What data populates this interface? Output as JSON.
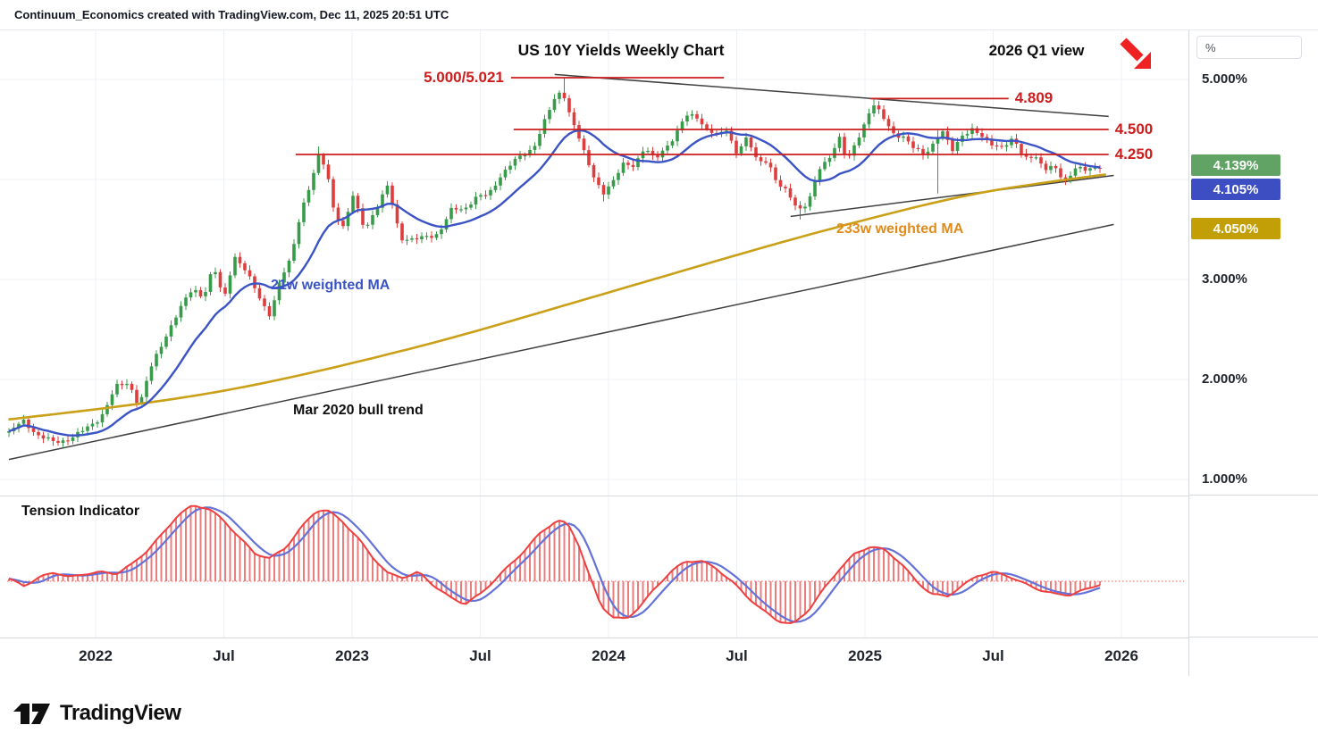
{
  "attribution": "Continuum_Economics created with TradingView.com, Dec 11, 2025 20:51 UTC",
  "titles": {
    "main": "US 10Y Yields Weekly Chart",
    "view": "2026 Q1 view"
  },
  "footer": {
    "brand": "TradingView"
  },
  "colors": {
    "candle_up": "#389b4a",
    "candle_down": "#de3d3d",
    "ma21": "#3a53c5",
    "ma233": "#c9a018",
    "level_red": "#cc1d1d",
    "trendline": "#404040",
    "tension_bar": "#ec7d7d",
    "tension_red": "#ee4040",
    "tension_blue": "#6472d8",
    "baseline_red": "#dd6666",
    "grid": "#edf0f4",
    "arrow_red": "#ee2222"
  },
  "chart_data": {
    "type": "candlestick",
    "title": "US 10Y Yields Weekly Chart",
    "instrument": "US 10Y Yields",
    "timeframe": "Weekly",
    "x_axis": {
      "labels": [
        "2022",
        "Jul",
        "2023",
        "Jul",
        "2024",
        "Jul",
        "2025",
        "Jul",
        "2026"
      ],
      "t": [
        2022,
        2022.5,
        2023,
        2023.5,
        2024,
        2024.5,
        2025,
        2025.5,
        2026
      ],
      "t_range": [
        2021.66,
        2026.26
      ]
    },
    "y_axis": {
      "unit": "%",
      "tick_labels": [
        "5.000%",
        "3.000%",
        "2.000%",
        "1.000%"
      ],
      "tick_values": [
        5.0,
        3.0,
        2.0,
        1.0
      ],
      "range": [
        0.85,
        5.45
      ],
      "grid": true
    },
    "panes": {
      "price": {
        "series_type": "candlestick",
        "weekly_close_anchors": [
          [
            2021.662,
            1.47
          ],
          [
            2021.72,
            1.58
          ],
          [
            2021.78,
            1.44
          ],
          [
            2021.84,
            1.36
          ],
          [
            2021.9,
            1.42
          ],
          [
            2021.96,
            1.49
          ],
          [
            2022.02,
            1.63
          ],
          [
            2022.08,
            1.92
          ],
          [
            2022.13,
            1.97
          ],
          [
            2022.17,
            1.74
          ],
          [
            2022.22,
            2.14
          ],
          [
            2022.28,
            2.48
          ],
          [
            2022.33,
            2.7
          ],
          [
            2022.38,
            2.92
          ],
          [
            2022.42,
            2.83
          ],
          [
            2022.46,
            3.12
          ],
          [
            2022.5,
            2.79
          ],
          [
            2022.54,
            3.25
          ],
          [
            2022.58,
            3.1
          ],
          [
            2022.63,
            2.86
          ],
          [
            2022.68,
            2.65
          ],
          [
            2022.72,
            2.98
          ],
          [
            2022.76,
            3.2
          ],
          [
            2022.8,
            3.69
          ],
          [
            2022.84,
            3.96
          ],
          [
            2022.87,
            4.22
          ],
          [
            2022.9,
            4.12
          ],
          [
            2022.93,
            3.69
          ],
          [
            2022.97,
            3.49
          ],
          [
            2023.0,
            3.85
          ],
          [
            2023.05,
            3.52
          ],
          [
            2023.1,
            3.72
          ],
          [
            2023.14,
            3.94
          ],
          [
            2023.19,
            3.42
          ],
          [
            2023.24,
            3.38
          ],
          [
            2023.29,
            3.44
          ],
          [
            2023.34,
            3.46
          ],
          [
            2023.39,
            3.7
          ],
          [
            2023.44,
            3.72
          ],
          [
            2023.48,
            3.81
          ],
          [
            2023.53,
            3.84
          ],
          [
            2023.58,
            4.05
          ],
          [
            2023.63,
            4.17
          ],
          [
            2023.67,
            4.25
          ],
          [
            2023.71,
            4.34
          ],
          [
            2023.75,
            4.57
          ],
          [
            2023.79,
            4.8
          ],
          [
            2023.82,
            4.91
          ],
          [
            2023.85,
            4.65
          ],
          [
            2023.88,
            4.44
          ],
          [
            2023.91,
            4.22
          ],
          [
            2023.94,
            4.05
          ],
          [
            2023.98,
            3.87
          ],
          [
            2024.02,
            3.97
          ],
          [
            2024.06,
            4.17
          ],
          [
            2024.1,
            4.15
          ],
          [
            2024.14,
            4.3
          ],
          [
            2024.18,
            4.2
          ],
          [
            2024.22,
            4.33
          ],
          [
            2024.26,
            4.42
          ],
          [
            2024.3,
            4.63
          ],
          [
            2024.34,
            4.66
          ],
          [
            2024.38,
            4.5
          ],
          [
            2024.42,
            4.43
          ],
          [
            2024.46,
            4.51
          ],
          [
            2024.5,
            4.27
          ],
          [
            2024.54,
            4.4
          ],
          [
            2024.58,
            4.19
          ],
          [
            2024.62,
            4.2
          ],
          [
            2024.66,
            3.93
          ],
          [
            2024.7,
            3.87
          ],
          [
            2024.74,
            3.71
          ],
          [
            2024.78,
            3.76
          ],
          [
            2024.82,
            4.09
          ],
          [
            2024.86,
            4.23
          ],
          [
            2024.9,
            4.42
          ],
          [
            2024.93,
            4.16
          ],
          [
            2024.97,
            4.4
          ],
          [
            2025.0,
            4.58
          ],
          [
            2025.03,
            4.76
          ],
          [
            2025.07,
            4.61
          ],
          [
            2025.11,
            4.47
          ],
          [
            2025.15,
            4.43
          ],
          [
            2025.19,
            4.3
          ],
          [
            2025.23,
            4.25
          ],
          [
            2025.27,
            4.38
          ],
          [
            2025.3,
            4.48
          ],
          [
            2025.34,
            4.28
          ],
          [
            2025.38,
            4.46
          ],
          [
            2025.42,
            4.5
          ],
          [
            2025.46,
            4.4
          ],
          [
            2025.5,
            4.36
          ],
          [
            2025.54,
            4.33
          ],
          [
            2025.58,
            4.39
          ],
          [
            2025.62,
            4.22
          ],
          [
            2025.66,
            4.26
          ],
          [
            2025.7,
            4.08
          ],
          [
            2025.74,
            4.13
          ],
          [
            2025.78,
            3.99
          ],
          [
            2025.82,
            4.1
          ],
          [
            2025.86,
            4.09
          ],
          [
            2025.89,
            4.13
          ],
          [
            2025.915,
            4.14
          ]
        ],
        "wick_overrides": [
          {
            "t": 2022.87,
            "high": 4.33
          },
          {
            "t": 2023.82,
            "high": 5.02
          },
          {
            "t": 2023.98,
            "low": 3.78
          },
          {
            "t": 2024.74,
            "low": 3.6
          },
          {
            "t": 2025.03,
            "high": 4.81
          },
          {
            "t": 2025.29,
            "low": 3.86,
            "high": 4.49
          }
        ],
        "ma_21w": {
          "label": "21w weighted MA",
          "type": "weighted_ma",
          "period_weeks": 21,
          "last_value": 4.105
        },
        "ma_233w": {
          "label": "233w weighted MA",
          "type": "weighted_ma",
          "period_weeks": 233,
          "last_value": 4.05,
          "anchors": [
            [
              2021.66,
              1.6
            ],
            [
              2022.0,
              1.7
            ],
            [
              2022.3,
              1.8
            ],
            [
              2022.6,
              1.93
            ],
            [
              2023.0,
              2.16
            ],
            [
              2023.4,
              2.42
            ],
            [
              2023.8,
              2.72
            ],
            [
              2024.2,
              3.02
            ],
            [
              2024.6,
              3.32
            ],
            [
              2025.0,
              3.6
            ],
            [
              2025.4,
              3.85
            ],
            [
              2025.7,
              3.97
            ],
            [
              2025.94,
              4.05
            ]
          ]
        },
        "levels": [
          {
            "label": "5.000/5.021",
            "price": 5.018,
            "t_start": 2023.62,
            "t_end": 2024.45,
            "label_side": "left"
          },
          {
            "label": "4.809",
            "price": 4.809,
            "t_start": 2025.02,
            "t_end": 2025.56,
            "label_side": "right"
          },
          {
            "label": "4.500",
            "price": 4.5,
            "t_start": 2023.63,
            "t_end": 2025.95,
            "label_side": "right"
          },
          {
            "label": "4.250",
            "price": 4.25,
            "t_start": 2022.78,
            "t_end": 2025.95,
            "label_side": "right"
          }
        ],
        "trendlines": [
          {
            "label": "Mar 2020 bull trend",
            "from_t": 2021.662,
            "from_price": 1.2,
            "to_t": 2025.97,
            "to_price": 3.55
          },
          {
            "label": "",
            "from_t": 2023.79,
            "from_price": 5.05,
            "to_t": 2025.95,
            "to_price": 4.63
          },
          {
            "label": "",
            "from_t": 2024.71,
            "from_price": 3.63,
            "to_t": 2025.97,
            "to_price": 4.04
          }
        ],
        "badges": [
          {
            "label": "4.139%",
            "value": 4.139,
            "series": "last price",
            "color": "#61a364"
          },
          {
            "label": "4.105%",
            "value": 4.105,
            "series": "21w weighted MA",
            "color": "#3d4ec2"
          },
          {
            "label": "4.050%",
            "value": 4.05,
            "series": "233w weighted MA",
            "color": "#c29e07"
          }
        ],
        "last_close": 4.139
      },
      "tension": {
        "label": "Tension Indicator",
        "baseline": 0,
        "red_line_anchors": [
          [
            2021.662,
            0.03
          ],
          [
            2021.72,
            -0.06
          ],
          [
            2021.78,
            0.05
          ],
          [
            2021.84,
            0.12
          ],
          [
            2021.9,
            0.05
          ],
          [
            2021.96,
            0.1
          ],
          [
            2022.02,
            0.12
          ],
          [
            2022.08,
            0.1
          ],
          [
            2022.14,
            0.22
          ],
          [
            2022.2,
            0.4
          ],
          [
            2022.26,
            0.62
          ],
          [
            2022.32,
            0.87
          ],
          [
            2022.38,
            1.0
          ],
          [
            2022.44,
            0.96
          ],
          [
            2022.5,
            0.8
          ],
          [
            2022.56,
            0.58
          ],
          [
            2022.62,
            0.37
          ],
          [
            2022.68,
            0.3
          ],
          [
            2022.74,
            0.44
          ],
          [
            2022.8,
            0.7
          ],
          [
            2022.86,
            0.93
          ],
          [
            2022.9,
            0.94
          ],
          [
            2022.96,
            0.8
          ],
          [
            2023.02,
            0.58
          ],
          [
            2023.08,
            0.32
          ],
          [
            2023.14,
            0.1
          ],
          [
            2023.2,
            0.05
          ],
          [
            2023.26,
            0.12
          ],
          [
            2023.32,
            -0.06
          ],
          [
            2023.38,
            -0.21
          ],
          [
            2023.44,
            -0.3
          ],
          [
            2023.5,
            -0.17
          ],
          [
            2023.56,
            0.03
          ],
          [
            2023.62,
            0.23
          ],
          [
            2023.68,
            0.43
          ],
          [
            2023.74,
            0.66
          ],
          [
            2023.8,
            0.8
          ],
          [
            2023.84,
            0.76
          ],
          [
            2023.88,
            0.52
          ],
          [
            2023.92,
            0.12
          ],
          [
            2023.97,
            -0.32
          ],
          [
            2024.02,
            -0.48
          ],
          [
            2024.07,
            -0.5
          ],
          [
            2024.12,
            -0.34
          ],
          [
            2024.18,
            -0.1
          ],
          [
            2024.24,
            0.12
          ],
          [
            2024.3,
            0.26
          ],
          [
            2024.36,
            0.27
          ],
          [
            2024.42,
            0.17
          ],
          [
            2024.48,
            0.0
          ],
          [
            2024.54,
            -0.2
          ],
          [
            2024.6,
            -0.38
          ],
          [
            2024.66,
            -0.52
          ],
          [
            2024.72,
            -0.57
          ],
          [
            2024.78,
            -0.38
          ],
          [
            2024.84,
            -0.1
          ],
          [
            2024.9,
            0.16
          ],
          [
            2024.96,
            0.36
          ],
          [
            2025.02,
            0.46
          ],
          [
            2025.08,
            0.41
          ],
          [
            2025.14,
            0.24
          ],
          [
            2025.2,
            0.0
          ],
          [
            2025.26,
            -0.17
          ],
          [
            2025.32,
            -0.2
          ],
          [
            2025.38,
            -0.06
          ],
          [
            2025.44,
            0.08
          ],
          [
            2025.5,
            0.12
          ],
          [
            2025.56,
            0.07
          ],
          [
            2025.62,
            -0.03
          ],
          [
            2025.68,
            -0.11
          ],
          [
            2025.74,
            -0.17
          ],
          [
            2025.8,
            -0.18
          ],
          [
            2025.86,
            -0.11
          ],
          [
            2025.915,
            -0.04
          ]
        ],
        "blue_line": "smoothed red line (trailing 5-week average)"
      }
    }
  }
}
